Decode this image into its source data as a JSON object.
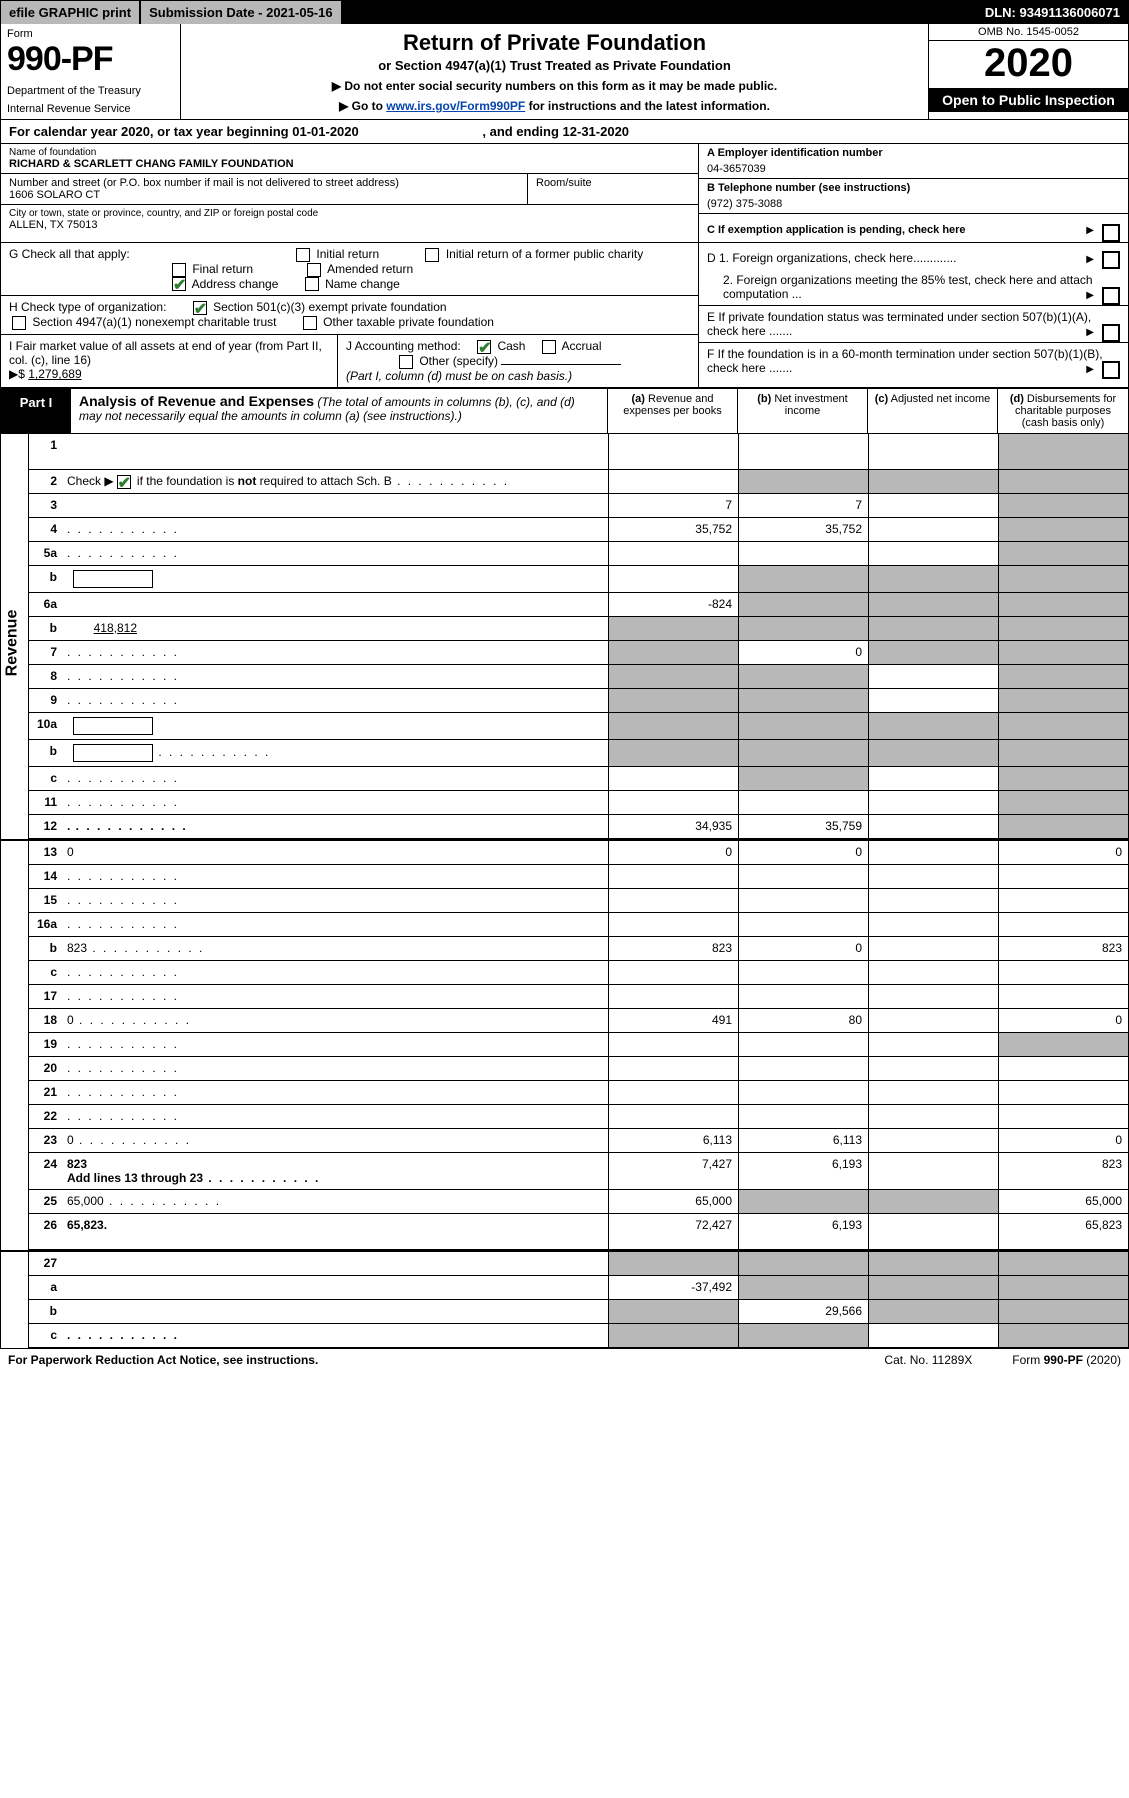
{
  "topbar": {
    "efile": "efile GRAPHIC print",
    "submission": "Submission Date - 2021-05-16",
    "dln": "DLN: 93491136006071"
  },
  "header": {
    "form_label": "Form",
    "form_num": "990-PF",
    "dept1": "Department of the Treasury",
    "dept2": "Internal Revenue Service",
    "title": "Return of Private Foundation",
    "subtitle": "or Section 4947(a)(1) Trust Treated as Private Foundation",
    "note1": "▶ Do not enter social security numbers on this form as it may be made public.",
    "note2_pre": "▶ Go to ",
    "note2_link": "www.irs.gov/Form990PF",
    "note2_post": " for instructions and the latest information.",
    "omb": "OMB No. 1545-0052",
    "year": "2020",
    "open": "Open to Public Inspection"
  },
  "calyear": {
    "pre": "For calendar year 2020, or tax year beginning ",
    "begin": "01-01-2020",
    "mid": " , and ending ",
    "end": "12-31-2020"
  },
  "entity": {
    "name_lbl": "Name of foundation",
    "name": "RICHARD & SCARLETT CHANG FAMILY FOUNDATION",
    "addr_lbl": "Number and street (or P.O. box number if mail is not delivered to street address)",
    "addr": "1606 SOLARO CT",
    "room_lbl": "Room/suite",
    "room": "",
    "city_lbl": "City or town, state or province, country, and ZIP or foreign postal code",
    "city": "ALLEN, TX  75013",
    "a_lbl": "A Employer identification number",
    "a_val": "04-3657039",
    "b_lbl": "B Telephone number (see instructions)",
    "b_val": "(972) 375-3088",
    "c_lbl": "C If exemption application is pending, check here",
    "d1_lbl": "D 1. Foreign organizations, check here.............",
    "d2_lbl": "2. Foreign organizations meeting the 85% test, check here and attach computation ...",
    "e_lbl": "E  If private foundation status was terminated under section 507(b)(1)(A), check here .......",
    "f_lbl": "F  If the foundation is in a 60-month termination under section 507(b)(1)(B), check here ......."
  },
  "g": {
    "label": "G Check all that apply:",
    "initial": "Initial return",
    "initial_former": "Initial return of a former public charity",
    "final": "Final return",
    "amended": "Amended return",
    "address": "Address change",
    "name_change": "Name change"
  },
  "h": {
    "label": "H Check type of organization:",
    "s501": "Section 501(c)(3) exempt private foundation",
    "s4947": "Section 4947(a)(1) nonexempt charitable trust",
    "other": "Other taxable private foundation"
  },
  "i": {
    "label": "I Fair market value of all assets at end of year (from Part II, col. (c), line 16)",
    "arrow": "▶$",
    "val": "1,279,689"
  },
  "j": {
    "label": "J Accounting method:",
    "cash": "Cash",
    "accrual": "Accrual",
    "other": "Other (specify)",
    "note": "(Part I, column (d) must be on cash basis.)"
  },
  "part1": {
    "tab": "Part I",
    "title": "Analysis of Revenue and Expenses",
    "desc": "(The total of amounts in columns (b), (c), and (d) may not necessarily equal the amounts in column (a) (see instructions).)",
    "col_a": "(a) Revenue and expenses per books",
    "col_b": "(b) Net investment income",
    "col_c": "(c) Adjusted net income",
    "col_d": "(d) Disbursements for charitable purposes (cash basis only)"
  },
  "rows": {
    "r1": {
      "n": "1",
      "d": "",
      "a": "",
      "b": "",
      "c": "",
      "gd": true
    },
    "r2": {
      "n": "2",
      "d_pre": "Check ▶",
      "d_post": " if the foundation is not required to attach Sch. B",
      "a": "",
      "b": "",
      "c": "",
      "d": "",
      "gb": true,
      "gc": true,
      "gd": true,
      "checked": true,
      "dots": true
    },
    "r3": {
      "n": "3",
      "d": "",
      "a": "7",
      "b": "7",
      "c": "",
      "gd": true
    },
    "r4": {
      "n": "4",
      "d": "",
      "a": "35,752",
      "b": "35,752",
      "c": "",
      "gd": true,
      "dots": true
    },
    "r5a": {
      "n": "5a",
      "d": "",
      "a": "",
      "b": "",
      "c": "",
      "gd": true,
      "dots": true
    },
    "r5b": {
      "n": "b",
      "d": "",
      "a": "",
      "b": "",
      "c": "",
      "gb": true,
      "gc": true,
      "gd": true,
      "box": true
    },
    "r6a": {
      "n": "6a",
      "d": "",
      "a": "-824",
      "b": "",
      "c": "",
      "gb": true,
      "gc": true,
      "gd": true
    },
    "r6b": {
      "n": "b",
      "d": "",
      "boxval": "418,812",
      "a": "",
      "b": "",
      "c": "",
      "ga": true,
      "gb": true,
      "gc": true,
      "gd": true,
      "box_inline": true
    },
    "r7": {
      "n": "7",
      "d": "",
      "a": "",
      "b": "0",
      "c": "",
      "ga": true,
      "gc": true,
      "gd": true,
      "dots": true
    },
    "r8": {
      "n": "8",
      "d": "",
      "a": "",
      "b": "",
      "c": "",
      "ga": true,
      "gb": true,
      "gd": true,
      "dots": true
    },
    "r9": {
      "n": "9",
      "d": "",
      "a": "",
      "b": "",
      "c": "",
      "ga": true,
      "gb": true,
      "gd": true,
      "dots": true
    },
    "r10a": {
      "n": "10a",
      "d": "",
      "a": "",
      "b": "",
      "c": "",
      "ga": true,
      "gb": true,
      "gc": true,
      "gd": true,
      "box": true
    },
    "r10b": {
      "n": "b",
      "d": "",
      "a": "",
      "b": "",
      "c": "",
      "ga": true,
      "gb": true,
      "gc": true,
      "gd": true,
      "box": true,
      "dots": true
    },
    "r10c": {
      "n": "c",
      "d": "",
      "a": "",
      "b": "",
      "c": "",
      "gb": true,
      "gd": true,
      "dots": true
    },
    "r11": {
      "n": "11",
      "d": "",
      "a": "",
      "b": "",
      "c": "",
      "gd": true,
      "dots": true
    },
    "r12": {
      "n": "12",
      "d": "",
      "a": "34,935",
      "b": "35,759",
      "c": "",
      "gd": true,
      "bold": true,
      "dots": true
    },
    "r13": {
      "n": "13",
      "d": "0",
      "a": "0",
      "b": "0",
      "c": ""
    },
    "r14": {
      "n": "14",
      "d": "",
      "a": "",
      "b": "",
      "c": "",
      "dots": true
    },
    "r15": {
      "n": "15",
      "d": "",
      "a": "",
      "b": "",
      "c": "",
      "dots": true
    },
    "r16a": {
      "n": "16a",
      "d": "",
      "a": "",
      "b": "",
      "c": "",
      "dots": true
    },
    "r16b": {
      "n": "b",
      "d": "823",
      "a": "823",
      "b": "0",
      "c": "",
      "dots": true
    },
    "r16c": {
      "n": "c",
      "d": "",
      "a": "",
      "b": "",
      "c": "",
      "dots": true
    },
    "r17": {
      "n": "17",
      "d": "",
      "a": "",
      "b": "",
      "c": "",
      "dots": true
    },
    "r18": {
      "n": "18",
      "d": "0",
      "a": "491",
      "b": "80",
      "c": "",
      "dots": true
    },
    "r19": {
      "n": "19",
      "d": "",
      "a": "",
      "b": "",
      "c": "",
      "gd": true,
      "dots": true
    },
    "r20": {
      "n": "20",
      "d": "",
      "a": "",
      "b": "",
      "c": "",
      "dots": true
    },
    "r21": {
      "n": "21",
      "d": "",
      "a": "",
      "b": "",
      "c": "",
      "dots": true
    },
    "r22": {
      "n": "22",
      "d": "",
      "a": "",
      "b": "",
      "c": "",
      "dots": true
    },
    "r23": {
      "n": "23",
      "d": "0",
      "a": "6,113",
      "b": "6,113",
      "c": "",
      "dots": true
    },
    "r24": {
      "n": "24",
      "d": "823",
      "d2": "Add lines 13 through 23",
      "a": "7,427",
      "b": "6,193",
      "c": "",
      "bold": true,
      "dots2": true
    },
    "r25": {
      "n": "25",
      "d": "65,000",
      "a": "65,000",
      "b": "",
      "c": "",
      "gb": true,
      "gc": true,
      "dots": true
    },
    "r26": {
      "n": "26",
      "d": "65,823",
      "a": "72,427",
      "b": "6,193",
      "c": "",
      "bold": true
    },
    "r27": {
      "n": "27",
      "d": "",
      "a": "",
      "b": "",
      "c": "",
      "ga": true,
      "gb": true,
      "gc": true,
      "gd": true
    },
    "r27a": {
      "n": "a",
      "d": "",
      "a": "-37,492",
      "b": "",
      "c": "",
      "gb": true,
      "gc": true,
      "gd": true,
      "bold": true
    },
    "r27b": {
      "n": "b",
      "d": "",
      "a": "",
      "b": "29,566",
      "c": "",
      "ga": true,
      "gc": true,
      "gd": true,
      "bold": true
    },
    "r27c": {
      "n": "c",
      "d": "",
      "a": "",
      "b": "",
      "c": "",
      "ga": true,
      "gb": true,
      "gd": true,
      "bold": true,
      "dots": true
    }
  },
  "footer": {
    "left": "For Paperwork Reduction Act Notice, see instructions.",
    "center": "Cat. No. 11289X",
    "right": "Form 990-PF (2020)"
  },
  "colors": {
    "grey": "#b8b8b8",
    "link": "#0645ad",
    "check": "#2e7d32"
  }
}
